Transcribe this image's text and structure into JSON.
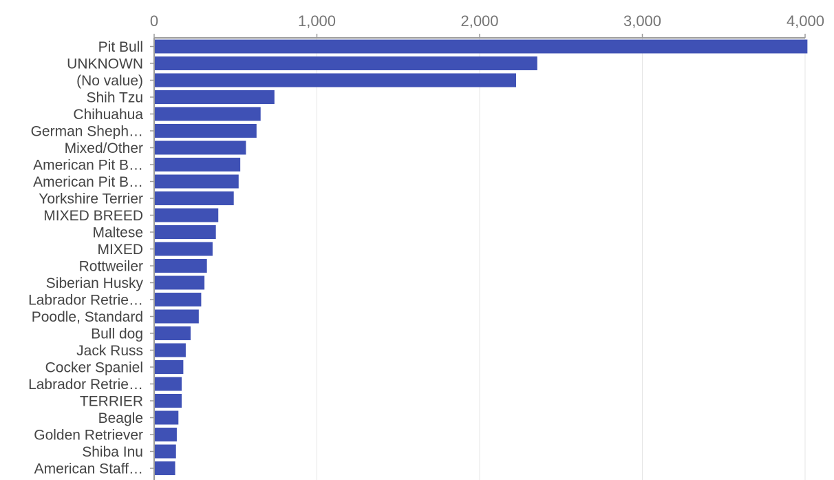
{
  "chart_data": {
    "type": "bar",
    "orientation": "horizontal",
    "categories": [
      "Pit Bull",
      "UNKNOWN",
      "(No value)",
      "Shih Tzu",
      "Chihuahua",
      "German Sheph…",
      "Mixed/Other",
      "American Pit B…",
      "American Pit B…",
      "Yorkshire Terrier",
      "MIXED BREED",
      "Maltese",
      "MIXED",
      "Rottweiler",
      "Siberian Husky",
      "Labrador Retrie…",
      "Poodle, Standard",
      "Bull dog",
      "Jack Russ",
      "Cocker Spaniel",
      "Labrador Retrie…",
      "TERRIER",
      "Beagle",
      "Golden Retriever",
      "Shiba Inu",
      "American Staff…"
    ],
    "values": [
      4010,
      2350,
      2220,
      735,
      650,
      625,
      560,
      525,
      515,
      485,
      390,
      375,
      355,
      320,
      305,
      285,
      270,
      220,
      190,
      175,
      165,
      165,
      145,
      135,
      130,
      125
    ],
    "xlim": [
      0,
      4000
    ],
    "xticks": [
      0,
      1000,
      2000,
      3000,
      4000
    ],
    "xtick_labels": [
      "0",
      "1,000",
      "2,000",
      "3,000",
      "4,000"
    ],
    "title": "",
    "xlabel": "",
    "ylabel": "",
    "grid": true,
    "axis_position": "top",
    "bar_color": "#3f51b5"
  }
}
